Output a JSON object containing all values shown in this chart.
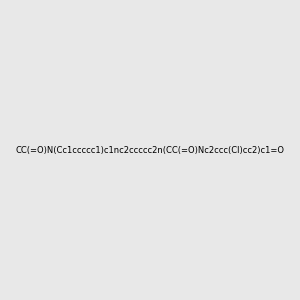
{
  "smiles": "CC(=O)N(Cc1ccccc1)c1nc2ccccc2n(CC(=O)Nc2ccc(Cl)cc2)c1=O",
  "image_size": 300,
  "background_color": "#e8e8e8",
  "title": ""
}
